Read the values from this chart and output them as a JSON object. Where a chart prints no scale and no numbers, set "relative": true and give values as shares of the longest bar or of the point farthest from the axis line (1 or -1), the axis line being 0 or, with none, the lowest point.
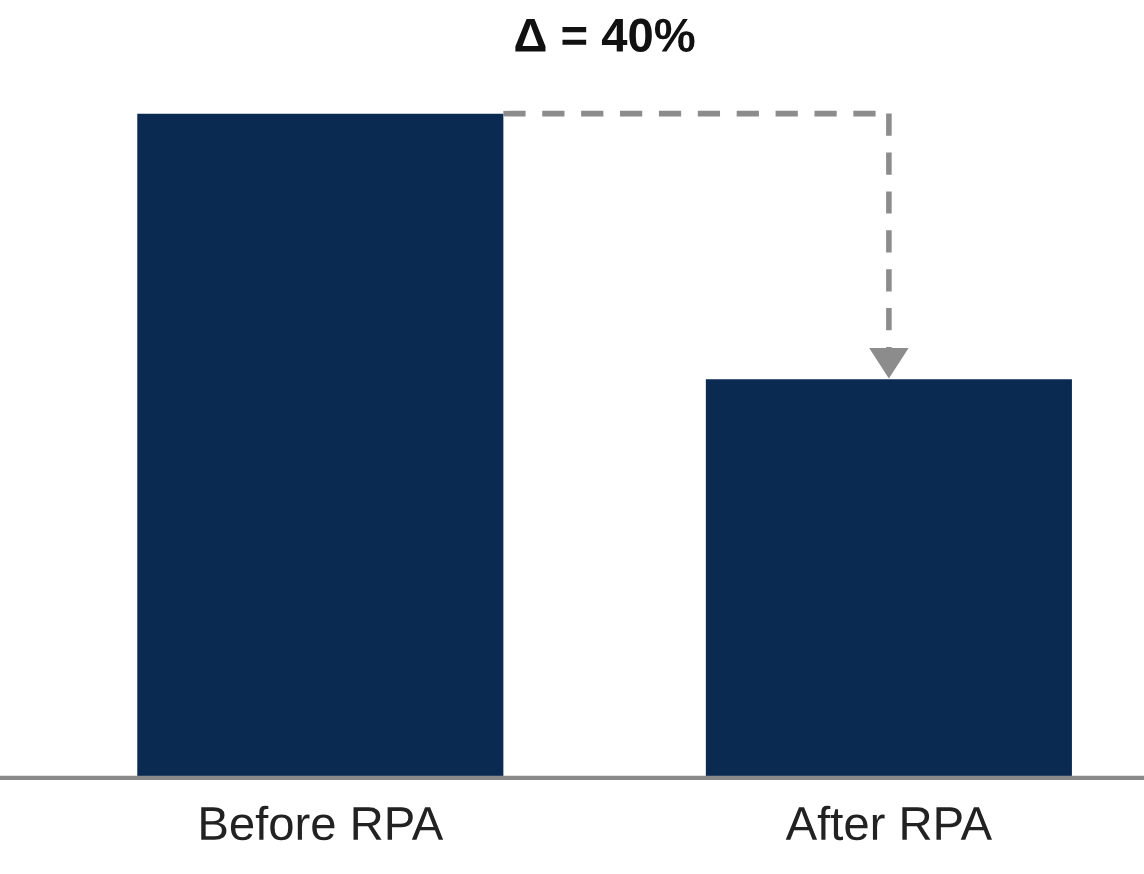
{
  "chart_data": {
    "type": "bar",
    "relative": true,
    "categories": [
      "Before RPA",
      "After RPA"
    ],
    "values": [
      1,
      0.6
    ],
    "color": "#0b2a52",
    "annotations": [
      "Δ = 40%"
    ],
    "grid": false,
    "legend": false
  }
}
